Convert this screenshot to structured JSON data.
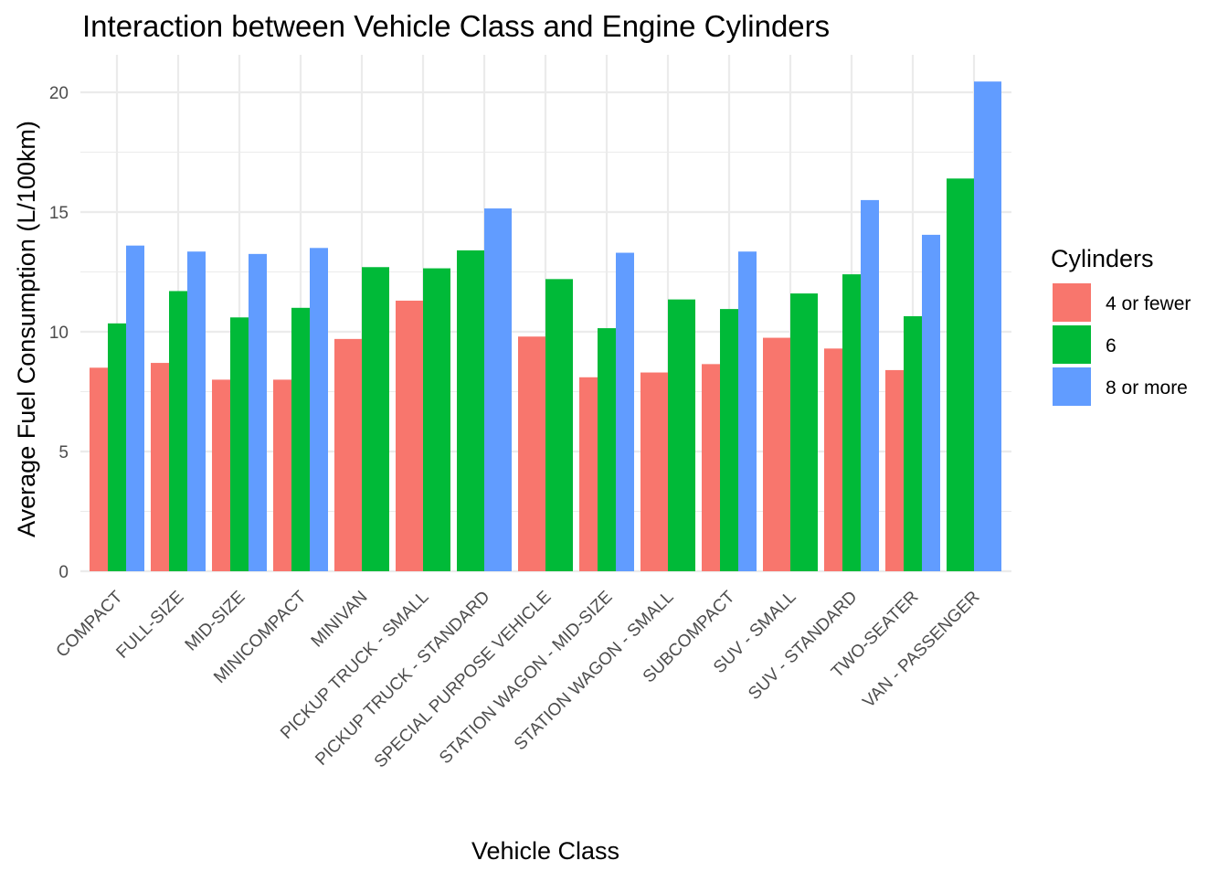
{
  "chart_data": {
    "type": "bar",
    "title": "Interaction between Vehicle Class and Engine Cylinders",
    "xlabel": "Vehicle Class",
    "ylabel": "Average Fuel Consumption (L/100km)",
    "ylim": [
      0,
      21
    ],
    "yticks": [
      "0",
      "5",
      "10",
      "15",
      "20"
    ],
    "grid": true,
    "legend": {
      "title": "Cylinders",
      "position": "right"
    },
    "categories": [
      "COMPACT",
      "FULL-SIZE",
      "MID-SIZE",
      "MINICOMPACT",
      "MINIVAN",
      "PICKUP TRUCK - SMALL",
      "PICKUP TRUCK - STANDARD",
      "SPECIAL PURPOSE VEHICLE",
      "STATION WAGON - MID-SIZE",
      "STATION WAGON - SMALL",
      "SUBCOMPACT",
      "SUV - SMALL",
      "SUV - STANDARD",
      "TWO-SEATER",
      "VAN - PASSENGER"
    ],
    "series": [
      {
        "name": "4 or fewer",
        "color": "#F8766D",
        "values": [
          8.5,
          8.7,
          8.0,
          8.0,
          9.7,
          11.3,
          null,
          9.8,
          8.1,
          8.3,
          8.65,
          9.75,
          9.3,
          8.4,
          null
        ]
      },
      {
        "name": "6",
        "color": "#00BA38",
        "values": [
          10.35,
          11.7,
          10.6,
          11.0,
          12.7,
          12.65,
          13.4,
          12.2,
          10.15,
          11.35,
          10.95,
          11.6,
          12.4,
          10.65,
          16.4
        ]
      },
      {
        "name": "8 or more",
        "color": "#619CFF",
        "values": [
          13.6,
          13.35,
          13.25,
          13.5,
          null,
          null,
          15.15,
          null,
          13.3,
          null,
          13.35,
          null,
          15.5,
          14.05,
          20.45
        ]
      }
    ]
  }
}
